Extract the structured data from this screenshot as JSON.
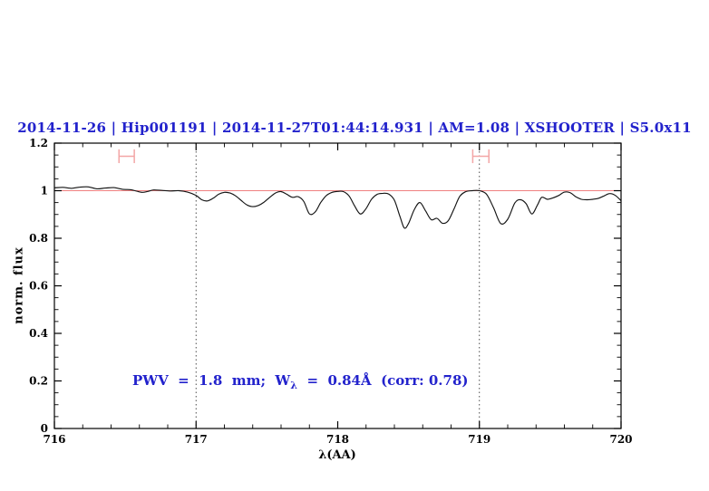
{
  "colors": {
    "accent_blue": "#2222cc",
    "continuum_red": "#ef8181",
    "marker_pink": "#f3a6a6",
    "spectrum_black": "#141414",
    "dotted_line": "#3a3a3a"
  },
  "chart_data": {
    "type": "line",
    "title": "2014-11-26 | Hip001191 | 2014-11-27T01:44:14.931 | AM=1.08 | XSHOOTER | S5.0x11",
    "xlabel": "λ(AA)",
    "ylabel": "norm. flux",
    "xlim": [
      716,
      720
    ],
    "ylim": [
      0,
      1.2
    ],
    "grid": false,
    "x_major_ticks": [
      716,
      717,
      718,
      719,
      720
    ],
    "x_tick_labels": [
      "716",
      "717",
      "718",
      "719",
      "720"
    ],
    "x_minor_step": 0.2,
    "y_major_ticks": [
      0,
      0.2,
      0.4,
      0.6,
      0.8,
      1,
      1.2
    ],
    "y_tick_labels": [
      "0",
      "0.2",
      "0.4",
      "0.6",
      "0.8",
      "1",
      "1.2"
    ],
    "y_minor_step": 0.05,
    "dotted_vlines": [
      717,
      719
    ],
    "continuum_line": {
      "y": 1.0
    },
    "band_markers": [
      {
        "x_center": 716.51,
        "x_halfwidth": 0.054,
        "y_center": 1.145,
        "cap_halfheight": 0.029
      },
      {
        "x_center": 719.01,
        "x_halfwidth": 0.057,
        "y_center": 1.145,
        "cap_halfheight": 0.029
      }
    ],
    "annotation": {
      "prefix": "PWV  =  1.8  mm;  W",
      "sub": "λ",
      "suffix": "  =  0.84Å  (corr: 0.78)",
      "x": 716.55,
      "y": 0.2
    },
    "series": [
      {
        "name": "normalized spectrum",
        "points": [
          [
            716.0,
            1.012
          ],
          [
            716.06,
            1.014
          ],
          [
            716.12,
            1.01
          ],
          [
            716.18,
            1.015
          ],
          [
            716.24,
            1.016
          ],
          [
            716.3,
            1.008
          ],
          [
            716.36,
            1.011
          ],
          [
            716.42,
            1.013
          ],
          [
            716.48,
            1.006
          ],
          [
            716.54,
            1.004
          ],
          [
            716.58,
            0.998
          ],
          [
            716.62,
            0.993
          ],
          [
            716.66,
            0.997
          ],
          [
            716.7,
            1.003
          ],
          [
            716.76,
            1.001
          ],
          [
            716.82,
            0.999
          ],
          [
            716.88,
            1.0
          ],
          [
            716.94,
            0.994
          ],
          [
            717.0,
            0.98
          ],
          [
            717.04,
            0.962
          ],
          [
            717.08,
            0.957
          ],
          [
            717.12,
            0.968
          ],
          [
            717.16,
            0.985
          ],
          [
            717.2,
            0.993
          ],
          [
            717.24,
            0.99
          ],
          [
            717.28,
            0.978
          ],
          [
            717.32,
            0.958
          ],
          [
            717.36,
            0.94
          ],
          [
            717.4,
            0.933
          ],
          [
            717.44,
            0.938
          ],
          [
            717.48,
            0.952
          ],
          [
            717.52,
            0.972
          ],
          [
            717.56,
            0.99
          ],
          [
            717.6,
            0.996
          ],
          [
            717.64,
            0.985
          ],
          [
            717.68,
            0.972
          ],
          [
            717.72,
            0.975
          ],
          [
            717.76,
            0.955
          ],
          [
            717.8,
            0.903
          ],
          [
            717.84,
            0.91
          ],
          [
            717.88,
            0.95
          ],
          [
            717.92,
            0.98
          ],
          [
            717.96,
            0.993
          ],
          [
            718.0,
            0.997
          ],
          [
            718.04,
            0.996
          ],
          [
            718.08,
            0.978
          ],
          [
            718.12,
            0.935
          ],
          [
            718.16,
            0.902
          ],
          [
            718.2,
            0.925
          ],
          [
            718.24,
            0.965
          ],
          [
            718.28,
            0.985
          ],
          [
            718.32,
            0.989
          ],
          [
            718.36,
            0.986
          ],
          [
            718.4,
            0.96
          ],
          [
            718.44,
            0.89
          ],
          [
            718.47,
            0.843
          ],
          [
            718.5,
            0.862
          ],
          [
            718.54,
            0.92
          ],
          [
            718.58,
            0.95
          ],
          [
            718.62,
            0.915
          ],
          [
            718.66,
            0.878
          ],
          [
            718.7,
            0.884
          ],
          [
            718.74,
            0.863
          ],
          [
            718.78,
            0.874
          ],
          [
            718.82,
            0.922
          ],
          [
            718.86,
            0.975
          ],
          [
            718.9,
            0.995
          ],
          [
            718.95,
            1.0
          ],
          [
            719.0,
            1.0
          ],
          [
            719.05,
            0.985
          ],
          [
            719.1,
            0.928
          ],
          [
            719.15,
            0.862
          ],
          [
            719.2,
            0.88
          ],
          [
            719.25,
            0.948
          ],
          [
            719.29,
            0.962
          ],
          [
            719.33,
            0.945
          ],
          [
            719.37,
            0.902
          ],
          [
            719.41,
            0.94
          ],
          [
            719.44,
            0.972
          ],
          [
            719.48,
            0.964
          ],
          [
            719.52,
            0.97
          ],
          [
            719.56,
            0.98
          ],
          [
            719.6,
            0.994
          ],
          [
            719.64,
            0.992
          ],
          [
            719.68,
            0.975
          ],
          [
            719.72,
            0.964
          ],
          [
            719.76,
            0.962
          ],
          [
            719.8,
            0.964
          ],
          [
            719.84,
            0.968
          ],
          [
            719.88,
            0.978
          ],
          [
            719.92,
            0.988
          ],
          [
            719.96,
            0.98
          ],
          [
            720.0,
            0.958
          ]
        ]
      }
    ]
  }
}
